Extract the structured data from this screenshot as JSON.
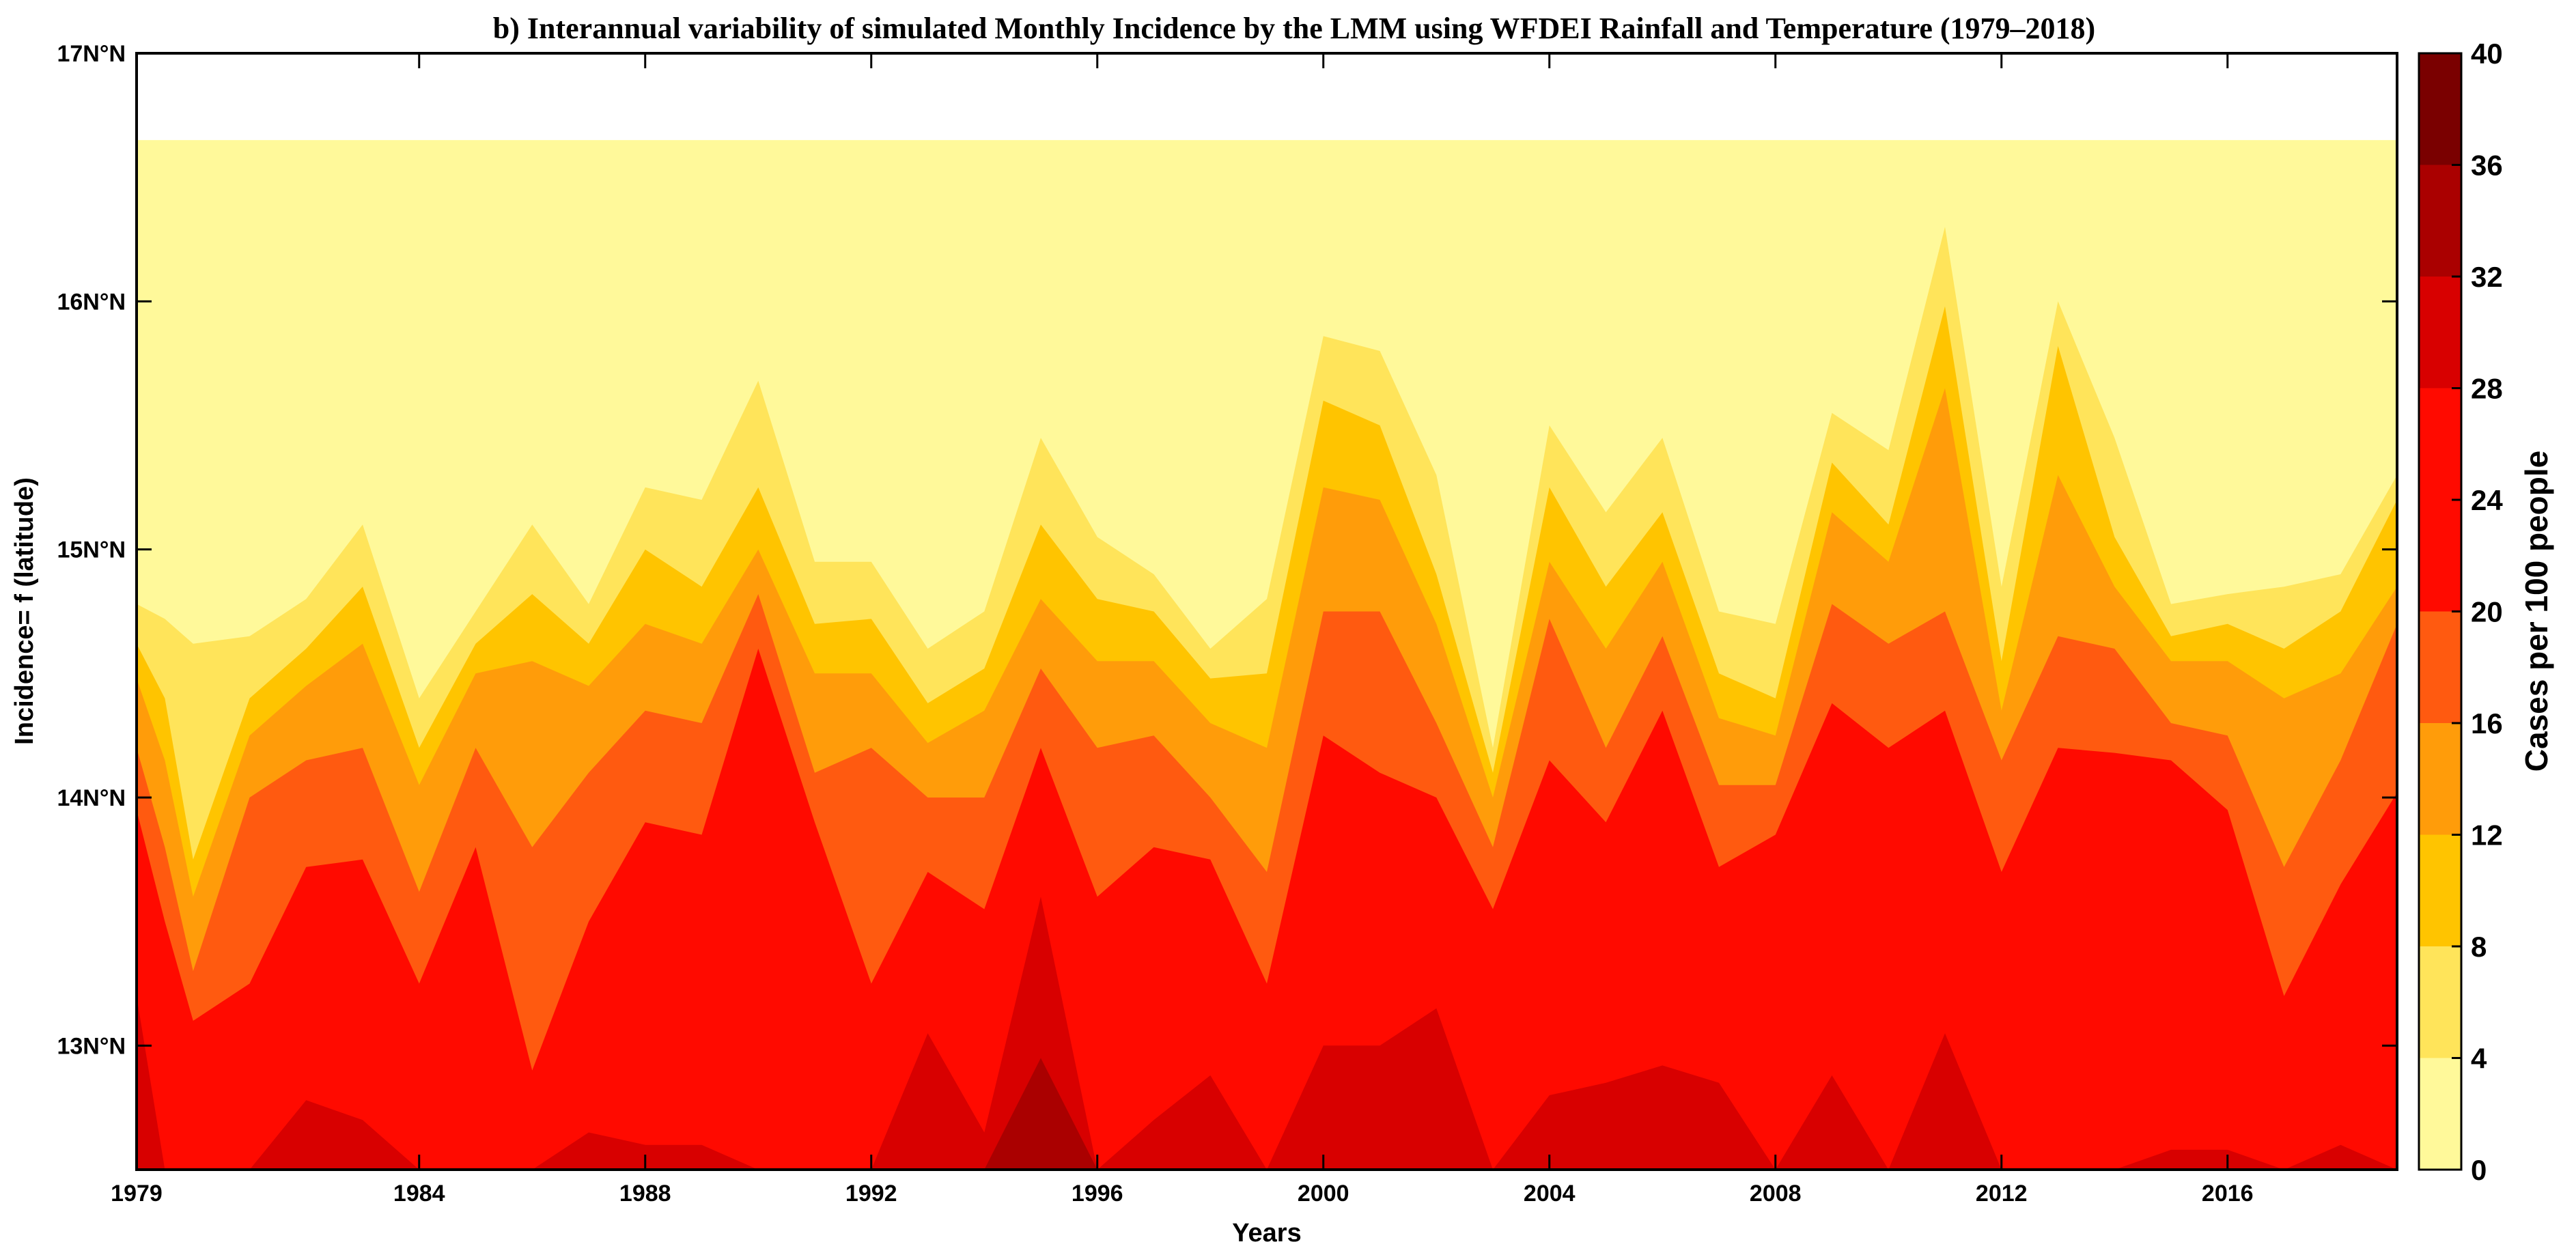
{
  "chart_data": {
    "type": "filled-contour",
    "title": "b) Interannual variability of simulated Monthly Incidence by the LMM using WFDEI Rainfall and Temperature (1979–2018)",
    "xlabel": "Years",
    "ylabel": "Incidence= f (latitude)",
    "colorbar_label": "Cases per 100 people",
    "xlim": [
      1979,
      2019
    ],
    "ylim": [
      12.5,
      17.0
    ],
    "data_top_latitude": 16.65,
    "x_ticks": [
      1979,
      1984,
      1988,
      1992,
      1996,
      2000,
      2004,
      2008,
      2012,
      2016
    ],
    "x_tick_labels": [
      "1979",
      "1984",
      "1988",
      "1992",
      "1996",
      "2000",
      "2004",
      "2008",
      "2012",
      "2016"
    ],
    "y_ticks": [
      13,
      14,
      15,
      16,
      17
    ],
    "y_tick_labels": [
      "13N°N",
      "14N°N",
      "15N°N",
      "16N°N",
      "17N°N"
    ],
    "colorbar_ticks": [
      0,
      4,
      8,
      12,
      16,
      20,
      24,
      28,
      32,
      36,
      40
    ],
    "colorbar_tick_labels": [
      "0",
      "4",
      "8",
      "12",
      "16",
      "20",
      "24",
      "28",
      "32",
      "36",
      "40"
    ],
    "colorbar_levels": [
      {
        "from": 0,
        "to": 4,
        "color": "#fff99a"
      },
      {
        "from": 4,
        "to": 8,
        "color": "#ffe45a"
      },
      {
        "from": 8,
        "to": 12,
        "color": "#ffc400"
      },
      {
        "from": 12,
        "to": 16,
        "color": "#ff9c0a"
      },
      {
        "from": 16,
        "to": 20,
        "color": "#ff5a10"
      },
      {
        "from": 20,
        "to": 28,
        "color": "#ff0a00"
      },
      {
        "from": 28,
        "to": 32,
        "color": "#d80000"
      },
      {
        "from": 32,
        "to": 36,
        "color": "#aa0000"
      },
      {
        "from": 36,
        "to": 40,
        "color": "#7a0000"
      }
    ],
    "contour_boundaries_latitude": {
      "years": [
        1979,
        1979.5,
        1980,
        1981,
        1982,
        1983,
        1984,
        1985,
        1986,
        1987,
        1988,
        1989,
        1990,
        1991,
        1992,
        1993,
        1994,
        1995,
        1996,
        1997,
        1998,
        1999,
        2000,
        2001,
        2002,
        2003,
        2004,
        2005,
        2006,
        2007,
        2008,
        2009,
        2010,
        2011,
        2012,
        2013,
        2014,
        2015,
        2016,
        2017,
        2018,
        2019
      ],
      "level_4": [
        14.78,
        14.72,
        14.62,
        14.65,
        14.8,
        15.1,
        14.4,
        14.75,
        15.1,
        14.78,
        15.25,
        15.2,
        15.68,
        14.95,
        14.95,
        14.6,
        14.75,
        15.45,
        15.05,
        14.9,
        14.6,
        14.8,
        15.86,
        15.8,
        15.3,
        14.2,
        15.5,
        15.15,
        15.45,
        14.75,
        14.7,
        15.55,
        15.4,
        16.3,
        14.85,
        16.0,
        15.45,
        14.78,
        14.82,
        14.85,
        14.9,
        15.3
      ],
      "level_8": [
        14.62,
        14.4,
        13.75,
        14.4,
        14.6,
        14.85,
        14.2,
        14.62,
        14.82,
        14.62,
        15.0,
        14.85,
        15.25,
        14.7,
        14.72,
        14.38,
        14.52,
        15.1,
        14.8,
        14.75,
        14.48,
        14.5,
        15.6,
        15.5,
        14.9,
        14.1,
        15.25,
        14.85,
        15.15,
        14.5,
        14.4,
        15.35,
        15.1,
        15.98,
        14.55,
        15.82,
        15.05,
        14.65,
        14.7,
        14.6,
        14.75,
        15.2
      ],
      "level_12": [
        14.48,
        14.15,
        13.6,
        14.25,
        14.45,
        14.62,
        14.05,
        14.5,
        14.55,
        14.45,
        14.7,
        14.62,
        15.0,
        14.5,
        14.5,
        14.22,
        14.35,
        14.8,
        14.55,
        14.55,
        14.3,
        14.2,
        15.25,
        15.2,
        14.7,
        14.0,
        14.95,
        14.6,
        14.95,
        14.32,
        14.25,
        15.15,
        14.95,
        15.65,
        14.35,
        15.3,
        14.85,
        14.55,
        14.55,
        14.4,
        14.5,
        14.85
      ],
      "level_16": [
        14.2,
        13.8,
        13.3,
        14.0,
        14.15,
        14.2,
        13.62,
        14.2,
        13.8,
        14.1,
        14.35,
        14.3,
        14.82,
        14.1,
        14.2,
        14.0,
        14.0,
        14.52,
        14.2,
        14.25,
        14.0,
        13.7,
        14.75,
        14.75,
        14.3,
        13.8,
        14.72,
        14.2,
        14.65,
        14.05,
        14.05,
        14.78,
        14.62,
        14.75,
        14.15,
        14.65,
        14.6,
        14.3,
        14.25,
        13.72,
        14.15,
        14.7
      ],
      "level_20": [
        13.95,
        13.5,
        13.1,
        13.25,
        13.72,
        13.75,
        13.25,
        13.8,
        12.9,
        13.5,
        13.9,
        13.85,
        14.6,
        13.9,
        13.25,
        13.7,
        13.55,
        14.2,
        13.6,
        13.8,
        13.75,
        13.25,
        14.25,
        14.1,
        14.0,
        13.55,
        14.15,
        13.9,
        14.35,
        13.72,
        13.85,
        14.38,
        14.2,
        14.35,
        13.7,
        14.2,
        14.18,
        14.15,
        13.95,
        13.2,
        13.65,
        14.02
      ],
      "level_28": [
        13.2,
        12.5,
        12.5,
        12.5,
        12.78,
        12.7,
        12.5,
        12.5,
        12.5,
        12.65,
        12.6,
        12.6,
        12.5,
        12.5,
        12.5,
        13.05,
        12.65,
        13.6,
        12.5,
        12.7,
        12.88,
        12.5,
        13.0,
        13.0,
        13.15,
        12.5,
        12.8,
        12.85,
        12.92,
        12.85,
        12.5,
        12.88,
        12.5,
        13.05,
        12.5,
        12.5,
        12.5,
        12.58,
        12.58,
        12.5,
        12.6,
        12.5
      ],
      "level_32": [
        12.5,
        12.5,
        12.5,
        12.5,
        12.5,
        12.5,
        12.5,
        12.5,
        12.5,
        12.5,
        12.5,
        12.5,
        12.5,
        12.5,
        12.5,
        12.5,
        12.5,
        12.95,
        12.5,
        12.5,
        12.5,
        12.5,
        12.5,
        12.5,
        12.5,
        12.5,
        12.5,
        12.5,
        12.5,
        12.5,
        12.5,
        12.5,
        12.5,
        12.5,
        12.5,
        12.5,
        12.5,
        12.5,
        12.5,
        12.5,
        12.5,
        12.5
      ]
    }
  }
}
